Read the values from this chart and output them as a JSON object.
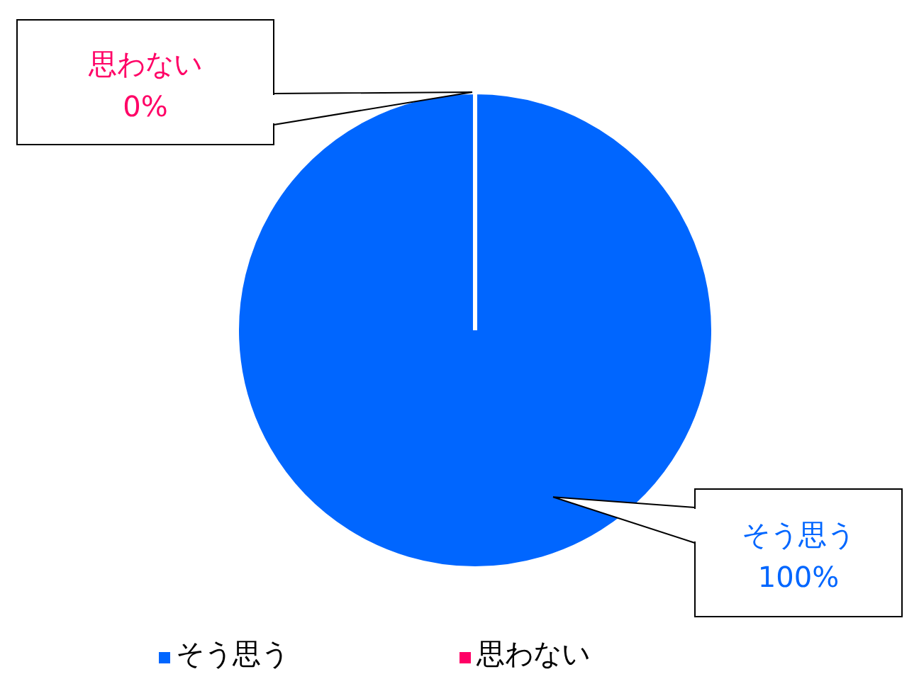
{
  "chart_data": {
    "type": "pie",
    "categories": [
      "そう思う",
      "思わない"
    ],
    "values": [
      100,
      0
    ],
    "colors": [
      "#0066ff",
      "#ff0066"
    ],
    "value_labels": [
      "100%",
      "0%"
    ],
    "legend": "bottom"
  }
}
